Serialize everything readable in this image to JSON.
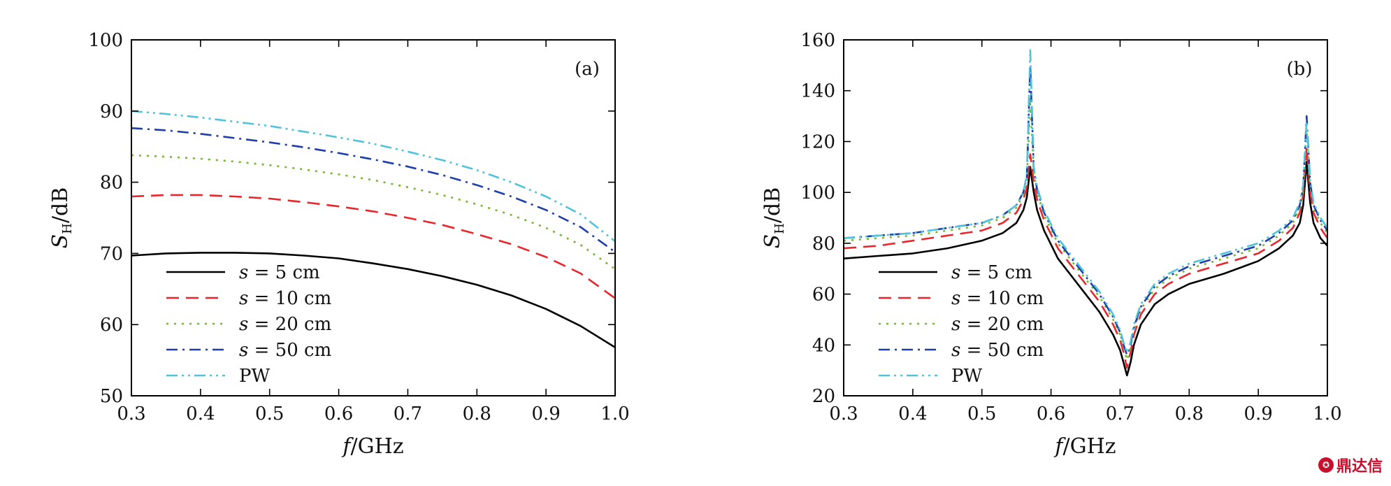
{
  "watermark": {
    "text": "鼎达信",
    "color": "#c8102e"
  },
  "legend_entries": [
    "s = 5 cm",
    "s = 10 cm",
    "s = 20 cm",
    "s = 50 cm",
    "PW"
  ],
  "chart_data": [
    {
      "type": "line",
      "panel_label": "(a)",
      "title": "",
      "xlabel": "f/GHz",
      "ylabel": "S_H/dB",
      "xlim": [
        0.3,
        1.0
      ],
      "ylim": [
        50,
        100
      ],
      "xticks": [
        0.3,
        0.4,
        0.5,
        0.6,
        0.7,
        0.8,
        0.9,
        1.0
      ],
      "yticks": [
        50,
        60,
        70,
        80,
        90,
        100
      ],
      "grid": false,
      "legend_position": "bottom-left",
      "series": [
        {
          "name": "s = 5 cm",
          "color": "#000000",
          "dash": "solid",
          "x": [
            0.3,
            0.35,
            0.4,
            0.45,
            0.5,
            0.55,
            0.6,
            0.65,
            0.7,
            0.75,
            0.8,
            0.85,
            0.9,
            0.95,
            1.0
          ],
          "y": [
            69.7,
            70.0,
            70.1,
            70.1,
            70.0,
            69.7,
            69.3,
            68.6,
            67.8,
            66.8,
            65.6,
            64.1,
            62.2,
            59.8,
            56.8
          ]
        },
        {
          "name": "s = 10 cm",
          "color": "#e8262b",
          "dash": "long",
          "x": [
            0.3,
            0.35,
            0.4,
            0.45,
            0.5,
            0.55,
            0.6,
            0.65,
            0.7,
            0.75,
            0.8,
            0.85,
            0.9,
            0.95,
            1.0
          ],
          "y": [
            78.0,
            78.2,
            78.2,
            78.0,
            77.7,
            77.2,
            76.6,
            75.9,
            75.0,
            74.0,
            72.7,
            71.3,
            69.5,
            67.2,
            63.7
          ]
        },
        {
          "name": "s = 20 cm",
          "color": "#74b72e",
          "dash": "dot",
          "x": [
            0.3,
            0.35,
            0.4,
            0.45,
            0.5,
            0.55,
            0.6,
            0.65,
            0.7,
            0.75,
            0.8,
            0.85,
            0.9,
            0.95,
            1.0
          ],
          "y": [
            83.8,
            83.6,
            83.3,
            82.9,
            82.4,
            81.8,
            81.1,
            80.3,
            79.3,
            78.2,
            76.9,
            75.4,
            73.6,
            71.2,
            67.8
          ]
        },
        {
          "name": "s = 50 cm",
          "color": "#1f3ea8",
          "dash": "dashdot",
          "x": [
            0.3,
            0.35,
            0.4,
            0.45,
            0.5,
            0.55,
            0.6,
            0.65,
            0.7,
            0.75,
            0.8,
            0.85,
            0.9,
            0.95,
            1.0
          ],
          "y": [
            87.6,
            87.3,
            86.8,
            86.2,
            85.6,
            84.9,
            84.1,
            83.2,
            82.2,
            81.0,
            79.6,
            78.0,
            76.1,
            73.7,
            70.2
          ]
        },
        {
          "name": "PW",
          "color": "#4fc3d9",
          "dash": "dashdotdot",
          "x": [
            0.3,
            0.35,
            0.4,
            0.45,
            0.5,
            0.55,
            0.6,
            0.65,
            0.7,
            0.75,
            0.8,
            0.85,
            0.9,
            0.95,
            1.0
          ],
          "y": [
            90.0,
            89.6,
            89.1,
            88.5,
            87.9,
            87.1,
            86.3,
            85.4,
            84.3,
            83.1,
            81.7,
            80.0,
            78.0,
            75.5,
            71.7
          ]
        }
      ]
    },
    {
      "type": "line",
      "panel_label": "(b)",
      "title": "",
      "xlabel": "f/GHz",
      "ylabel": "S_H/dB",
      "xlim": [
        0.3,
        1.0
      ],
      "ylim": [
        20,
        160
      ],
      "xticks": [
        0.3,
        0.4,
        0.5,
        0.6,
        0.7,
        0.8,
        0.9,
        1.0
      ],
      "yticks": [
        20,
        40,
        60,
        80,
        100,
        120,
        140,
        160
      ],
      "grid": false,
      "legend_position": "bottom-left",
      "series": [
        {
          "name": "s = 5 cm",
          "color": "#000000",
          "dash": "solid",
          "x": [
            0.3,
            0.35,
            0.4,
            0.45,
            0.5,
            0.53,
            0.55,
            0.56,
            0.565,
            0.57,
            0.575,
            0.58,
            0.59,
            0.61,
            0.63,
            0.65,
            0.67,
            0.69,
            0.7,
            0.705,
            0.71,
            0.715,
            0.72,
            0.73,
            0.75,
            0.77,
            0.8,
            0.85,
            0.9,
            0.93,
            0.95,
            0.96,
            0.965,
            0.97,
            0.975,
            0.98,
            0.99,
            1.0
          ],
          "y": [
            74,
            75,
            76,
            78,
            81,
            84,
            88,
            93,
            98,
            110,
            100,
            93,
            85,
            74,
            67,
            60,
            53,
            44,
            38,
            33,
            28,
            33,
            40,
            48,
            56,
            60,
            64,
            68,
            73,
            78,
            83,
            88,
            95,
            112,
            96,
            88,
            82,
            79
          ]
        },
        {
          "name": "s = 10 cm",
          "color": "#e8262b",
          "dash": "long",
          "x": [
            0.3,
            0.35,
            0.4,
            0.45,
            0.5,
            0.53,
            0.55,
            0.56,
            0.565,
            0.57,
            0.575,
            0.58,
            0.59,
            0.61,
            0.63,
            0.65,
            0.67,
            0.69,
            0.7,
            0.705,
            0.71,
            0.715,
            0.72,
            0.73,
            0.75,
            0.77,
            0.8,
            0.85,
            0.9,
            0.93,
            0.95,
            0.96,
            0.965,
            0.97,
            0.975,
            0.98,
            0.99,
            1.0
          ],
          "y": [
            78,
            79,
            81,
            83,
            85,
            88,
            92,
            97,
            102,
            115,
            104,
            97,
            89,
            78,
            71,
            64,
            57,
            48,
            42,
            37,
            31,
            37,
            44,
            52,
            60,
            64,
            68,
            72,
            76,
            81,
            86,
            92,
            99,
            118,
            100,
            92,
            86,
            82
          ]
        },
        {
          "name": "s = 20 cm",
          "color": "#74b72e",
          "dash": "dot",
          "x": [
            0.3,
            0.35,
            0.4,
            0.45,
            0.5,
            0.53,
            0.55,
            0.56,
            0.565,
            0.57,
            0.575,
            0.58,
            0.59,
            0.61,
            0.63,
            0.65,
            0.67,
            0.69,
            0.7,
            0.705,
            0.71,
            0.715,
            0.72,
            0.73,
            0.75,
            0.77,
            0.8,
            0.85,
            0.9,
            0.93,
            0.95,
            0.96,
            0.965,
            0.97,
            0.975,
            0.98,
            0.99,
            1.0
          ],
          "y": [
            81,
            82,
            83,
            85,
            87,
            90,
            94,
            99,
            105,
            135,
            108,
            100,
            91,
            80,
            73,
            66,
            59,
            50,
            44,
            39,
            34,
            39,
            46,
            54,
            62,
            66,
            70,
            74,
            78,
            83,
            88,
            94,
            101,
            125,
            103,
            94,
            88,
            84
          ]
        },
        {
          "name": "s = 50 cm",
          "color": "#1f3ea8",
          "dash": "dashdot",
          "x": [
            0.3,
            0.35,
            0.4,
            0.45,
            0.5,
            0.53,
            0.55,
            0.56,
            0.565,
            0.57,
            0.575,
            0.58,
            0.59,
            0.61,
            0.63,
            0.65,
            0.67,
            0.69,
            0.7,
            0.705,
            0.71,
            0.715,
            0.72,
            0.73,
            0.75,
            0.77,
            0.8,
            0.85,
            0.9,
            0.93,
            0.95,
            0.96,
            0.965,
            0.97,
            0.975,
            0.98,
            0.99,
            1.0
          ],
          "y": [
            82,
            83,
            84,
            86,
            88,
            91,
            95,
            100,
            106,
            150,
            109,
            101,
            92,
            81,
            74,
            67,
            60,
            51,
            45,
            40,
            36,
            40,
            47,
            55,
            63,
            67,
            71,
            75,
            79,
            84,
            89,
            95,
            102,
            130,
            104,
            95,
            89,
            85
          ]
        },
        {
          "name": "PW",
          "color": "#4fc3d9",
          "dash": "dashdotdot",
          "x": [
            0.3,
            0.35,
            0.4,
            0.45,
            0.5,
            0.53,
            0.55,
            0.56,
            0.565,
            0.57,
            0.575,
            0.58,
            0.59,
            0.61,
            0.63,
            0.65,
            0.67,
            0.69,
            0.7,
            0.705,
            0.71,
            0.715,
            0.72,
            0.73,
            0.75,
            0.77,
            0.8,
            0.85,
            0.9,
            0.93,
            0.95,
            0.96,
            0.965,
            0.97,
            0.975,
            0.98,
            0.99,
            1.0
          ],
          "y": [
            82,
            83,
            84,
            86,
            88,
            91,
            95,
            100,
            107,
            156,
            110,
            102,
            93,
            82,
            75,
            68,
            61,
            52,
            46,
            41,
            37,
            41,
            48,
            56,
            64,
            68,
            72,
            76,
            80,
            85,
            90,
            96,
            103,
            128,
            105,
            96,
            90,
            86
          ]
        }
      ]
    }
  ]
}
